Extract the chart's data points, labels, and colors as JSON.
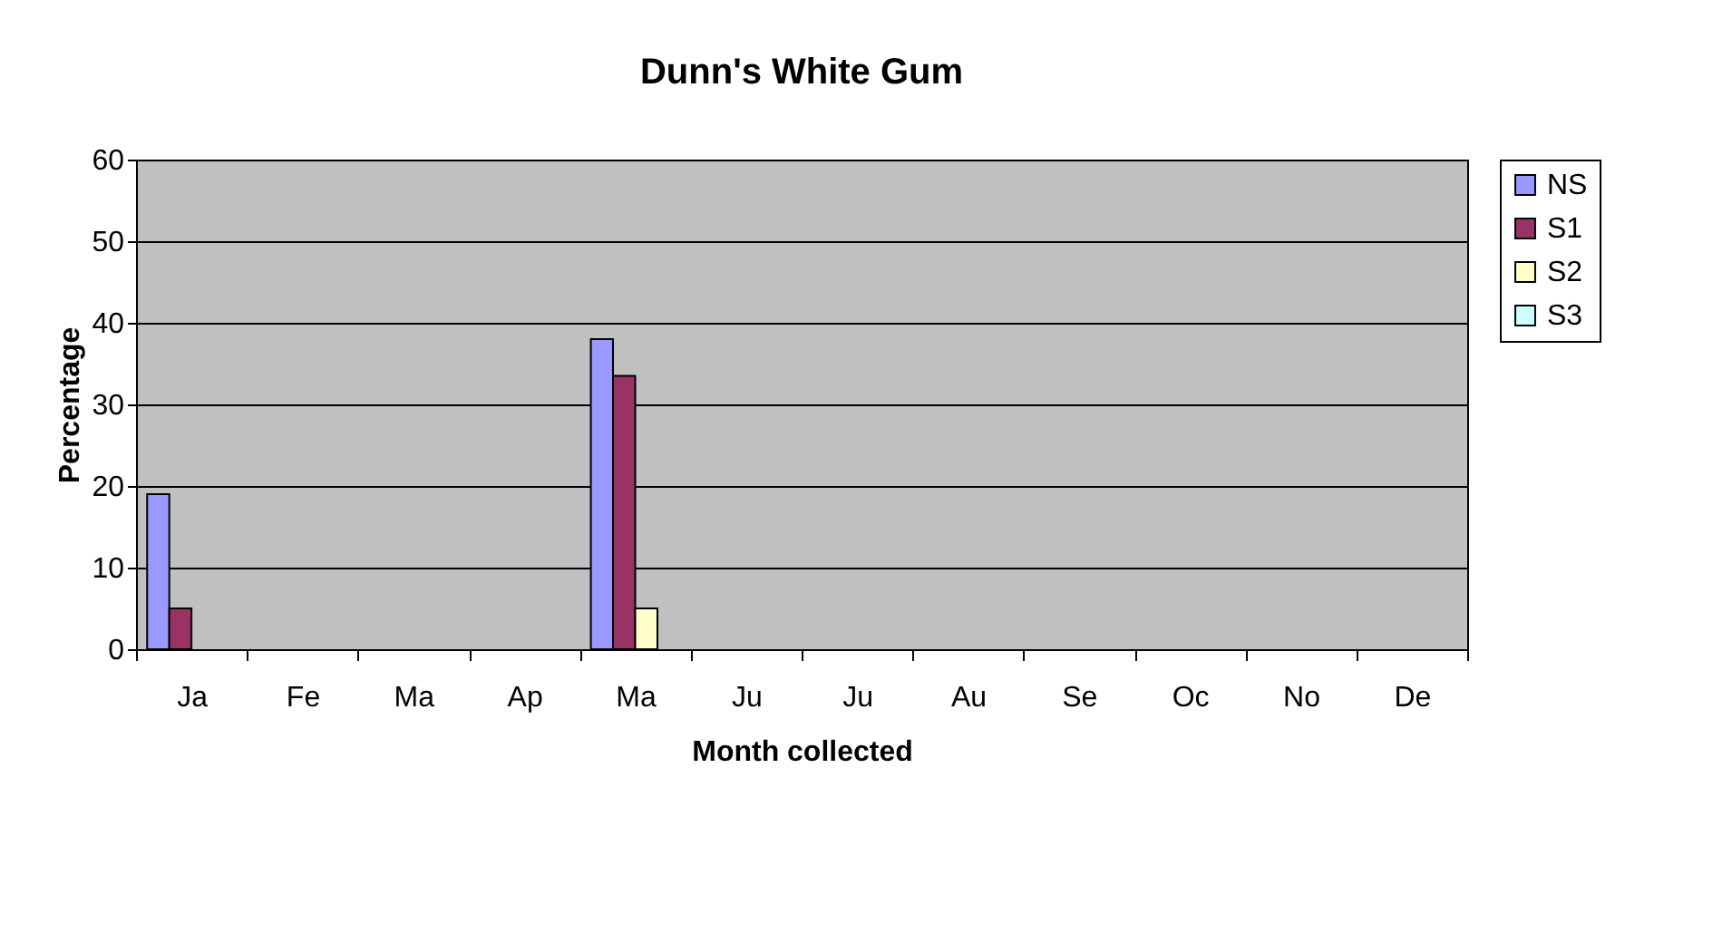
{
  "chart_data": {
    "type": "bar",
    "title": "Dunn's White Gum",
    "xlabel": "Month collected",
    "ylabel": "Percentage",
    "categories": [
      "Ja",
      "Fe",
      "Ma",
      "Ap",
      "Ma",
      "Ju",
      "Ju",
      "Au",
      "Se",
      "Oc",
      "No",
      "De"
    ],
    "series": [
      {
        "name": "NS",
        "color": "#9999ff",
        "values": [
          19,
          0,
          0,
          0,
          38,
          0,
          0,
          0,
          0,
          0,
          0,
          0
        ]
      },
      {
        "name": "S1",
        "color": "#993366",
        "values": [
          5,
          0,
          0,
          0,
          33.5,
          0,
          0,
          0,
          0,
          0,
          0,
          0
        ]
      },
      {
        "name": "S2",
        "color": "#ffffcc",
        "values": [
          0,
          0,
          0,
          0,
          5,
          0,
          0,
          0,
          0,
          0,
          0,
          0
        ]
      },
      {
        "name": "S3",
        "color": "#ccffff",
        "values": [
          0,
          0,
          0,
          0,
          0,
          0,
          0,
          0,
          0,
          0,
          0,
          0
        ]
      }
    ],
    "ylim": [
      0,
      60
    ],
    "yticks": [
      0,
      10,
      20,
      30,
      40,
      50,
      60
    ],
    "grid": "y",
    "legend": "right"
  }
}
